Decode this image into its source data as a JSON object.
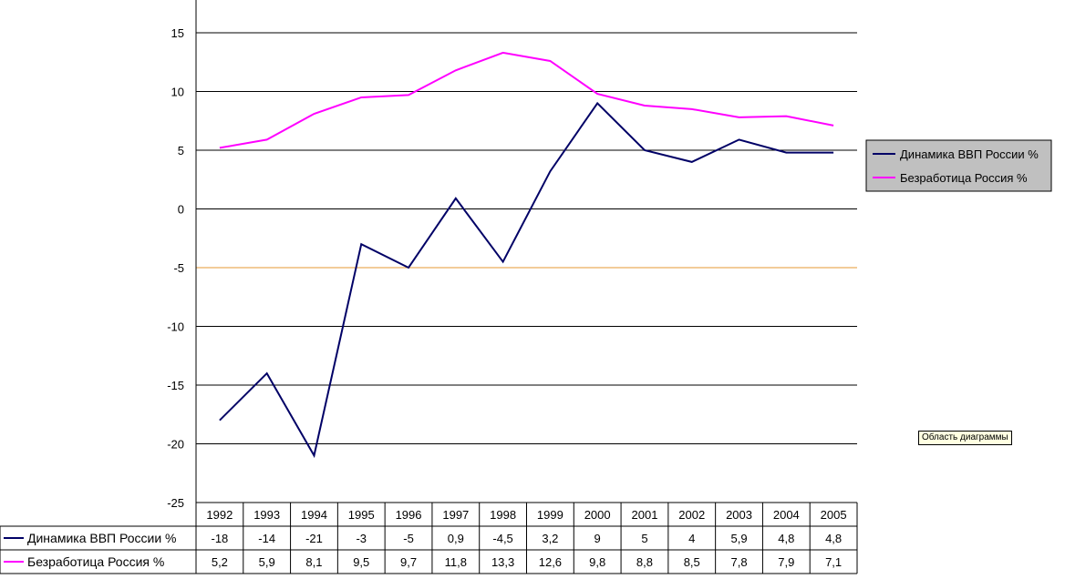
{
  "chart_data": {
    "type": "line",
    "categories": [
      "1992",
      "1993",
      "1994",
      "1995",
      "1996",
      "1997",
      "1998",
      "1999",
      "2000",
      "2001",
      "2002",
      "2003",
      "2004",
      "2005"
    ],
    "series": [
      {
        "name": "Динамика ВВП России %",
        "color": "#000066",
        "values": [
          -18,
          -14,
          -21,
          -3,
          -5,
          0.9,
          -4.5,
          3.2,
          9,
          5,
          4,
          5.9,
          4.8,
          4.8
        ],
        "labels": [
          "-18",
          "-14",
          "-21",
          "-3",
          "-5",
          "0,9",
          "-4,5",
          "3,2",
          "9",
          "5",
          "4",
          "5,9",
          "4,8",
          "4,8"
        ]
      },
      {
        "name": "Безработица Россия %",
        "color": "#ff00ff",
        "values": [
          5.2,
          5.9,
          8.1,
          9.5,
          9.7,
          11.8,
          13.3,
          12.6,
          9.8,
          8.8,
          8.5,
          7.8,
          7.9,
          7.1
        ],
        "labels": [
          "5,2",
          "5,9",
          "8,1",
          "9,5",
          "9,7",
          "11,8",
          "13,3",
          "12,6",
          "9,8",
          "8,8",
          "8,5",
          "7,8",
          "7,9",
          "7,1"
        ]
      }
    ],
    "ylim": [
      -25,
      15
    ],
    "yticks": [
      15,
      10,
      5,
      0,
      -5,
      -10,
      -15,
      -20,
      -25
    ],
    "ytick_labels": [
      "15",
      "10",
      "5",
      "0",
      "-5",
      "-10",
      "-15",
      "-20",
      "-25"
    ],
    "highlight_gridline": {
      "value": -5,
      "color": "#e69933"
    },
    "grid": true,
    "legend_position": "right",
    "data_table": true
  },
  "tooltip": "Область диаграммы",
  "colors": {
    "axis": "#000000",
    "grid": "#000000",
    "legend_bg": "#c0c0c0"
  }
}
